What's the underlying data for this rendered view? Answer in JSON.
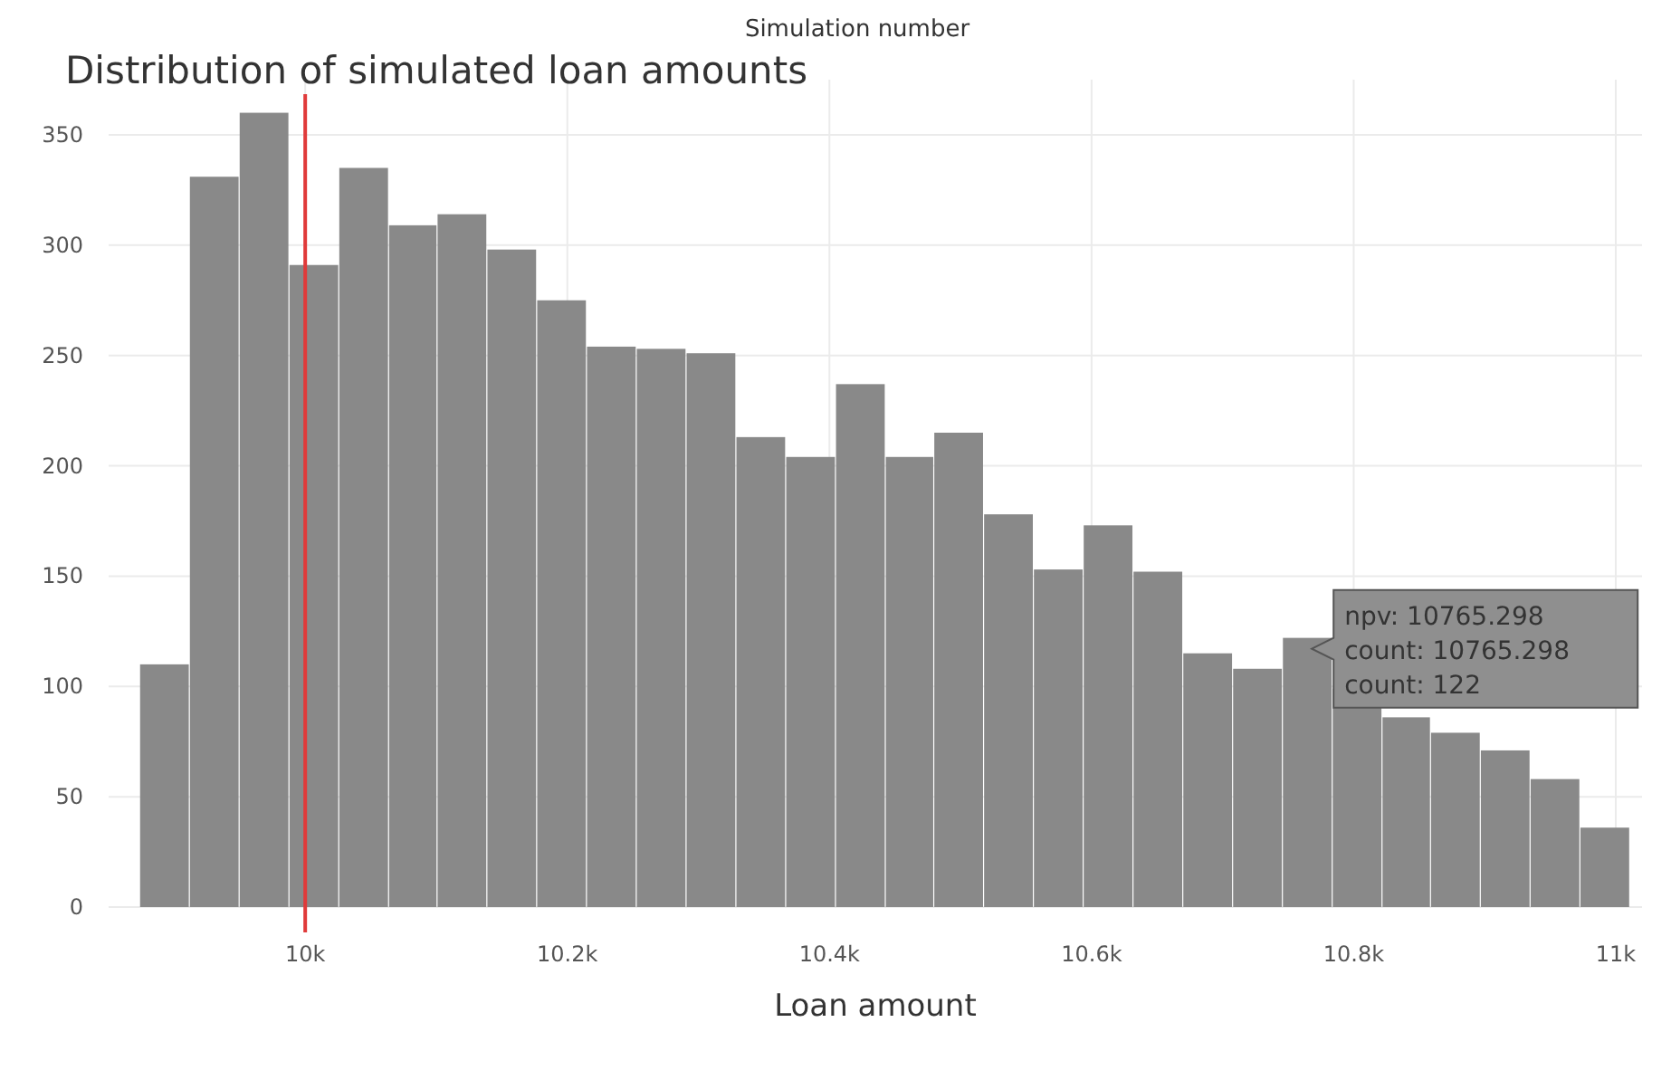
{
  "chart_data": {
    "type": "histogram",
    "title": "Distribution of simulated loan amounts",
    "xlabel": "Loan amount",
    "ylabel": "Simulation number",
    "bins": [
      9874,
      9912,
      9950,
      9988,
      10026,
      10064,
      10101,
      10139,
      10177,
      10215,
      10253,
      10291,
      10329,
      10367,
      10405,
      10443,
      10480,
      10518,
      10556,
      10594,
      10632,
      10670,
      10708,
      10746,
      10784,
      10822,
      10859,
      10897,
      10935,
      10973,
      11011
    ],
    "values": [
      110,
      331,
      360,
      291,
      335,
      309,
      314,
      298,
      275,
      254,
      253,
      251,
      213,
      204,
      237,
      204,
      215,
      178,
      153,
      173,
      152,
      115,
      108,
      122,
      99,
      86,
      79,
      71,
      58,
      36
    ],
    "color": "#898989",
    "xlim": [
      9850,
      11020
    ],
    "xticks": [
      {
        "value": 10000,
        "label": "10k"
      },
      {
        "value": 10200,
        "label": "10.2k"
      },
      {
        "value": 10400,
        "label": "10.4k"
      },
      {
        "value": 10600,
        "label": "10.6k"
      },
      {
        "value": 10800,
        "label": "10.8k"
      },
      {
        "value": 11000,
        "label": "11k"
      }
    ],
    "ylim": [
      0,
      375
    ],
    "yticks": [
      0,
      50,
      100,
      150,
      200,
      250,
      300,
      350
    ],
    "grid": true,
    "ref_lines": [
      {
        "axis": "x",
        "value": 10000,
        "color": "#e03a3a"
      }
    ],
    "annotations": [
      {
        "text": "npv: 10765.298\ncount: 10765.298\ncount: 122",
        "x": 10765.298,
        "y": 122
      }
    ]
  }
}
